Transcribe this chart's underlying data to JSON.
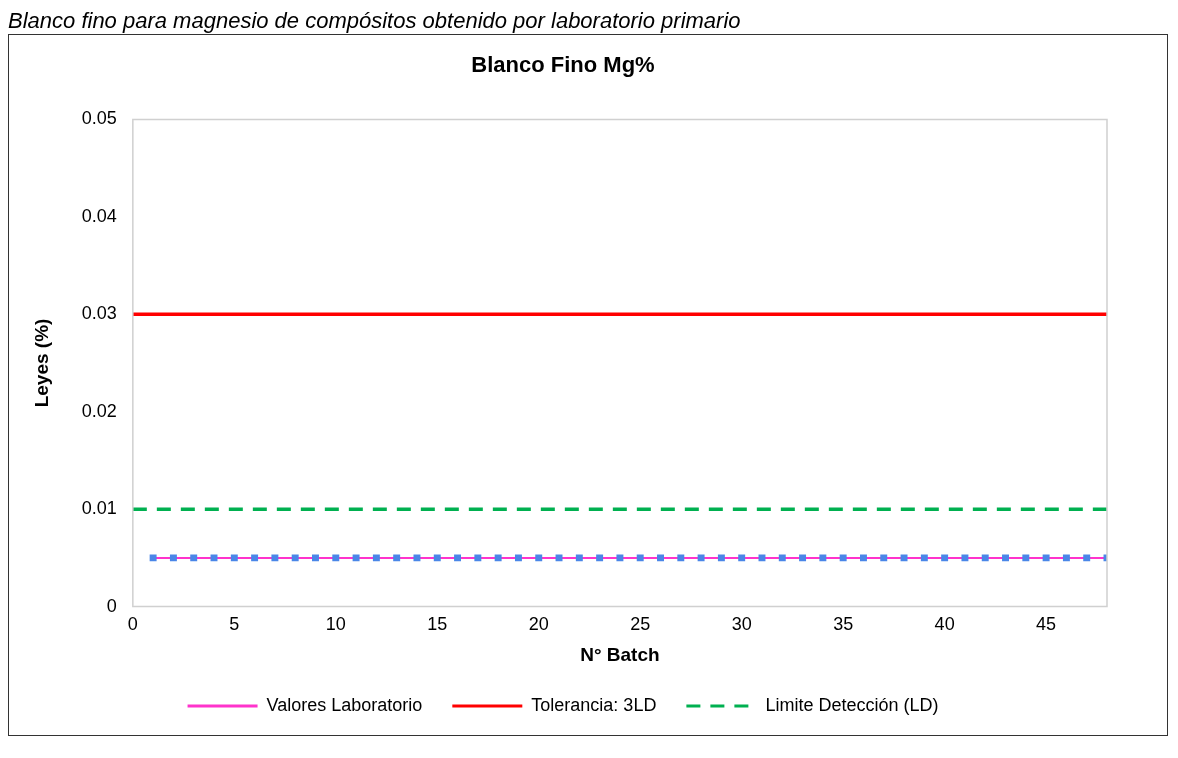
{
  "chart_data": {
    "type": "line",
    "title": "Blanco Fino Mg%",
    "xlabel": "N° Batch",
    "ylabel": "Leyes (%)",
    "annotations": [
      "Blanco fino para magnesio de compósitos obtenido por laboratorio primario"
    ],
    "xlim": [
      0,
      48
    ],
    "xticks": [
      0,
      5,
      10,
      15,
      20,
      25,
      30,
      35,
      40,
      45
    ],
    "ylim": [
      0,
      0.05
    ],
    "yticks": [
      0,
      0.01,
      0.02,
      0.03,
      0.04,
      0.05
    ],
    "grid": false,
    "legend": "bottom",
    "series": [
      {
        "name": "Valores Laboratorio",
        "color": "#ff33cc",
        "marker": "square",
        "line_style": "solid",
        "x": [
          1,
          2,
          3,
          4,
          5,
          6,
          7,
          8,
          9,
          10,
          11,
          12,
          13,
          14,
          15,
          16,
          17,
          18,
          19,
          20,
          21,
          22,
          23,
          24,
          25,
          26,
          27,
          28,
          29,
          30,
          31,
          32,
          33,
          34,
          35,
          36,
          37,
          38,
          39,
          40,
          41,
          42,
          43,
          44,
          45,
          46,
          47,
          48
        ],
        "values": [
          0.005,
          0.005,
          0.005,
          0.005,
          0.005,
          0.005,
          0.005,
          0.005,
          0.005,
          0.005,
          0.005,
          0.005,
          0.005,
          0.005,
          0.005,
          0.005,
          0.005,
          0.005,
          0.005,
          0.005,
          0.005,
          0.005,
          0.005,
          0.005,
          0.005,
          0.005,
          0.005,
          0.005,
          0.005,
          0.005,
          0.005,
          0.005,
          0.005,
          0.005,
          0.005,
          0.005,
          0.005,
          0.005,
          0.005,
          0.005,
          0.005,
          0.005,
          0.005,
          0.005,
          0.005,
          0.005,
          0.005,
          0.005
        ]
      },
      {
        "name": "Tolerancia: 3LD",
        "color": "#ff0000",
        "marker": "none",
        "line_style": "solid",
        "x": [
          0,
          48
        ],
        "values": [
          0.03,
          0.03
        ]
      },
      {
        "name": "Limite Detección (LD)",
        "color": "#00b050",
        "marker": "none",
        "line_style": "dashed",
        "x": [
          0,
          48
        ],
        "values": [
          0.01,
          0.01
        ]
      }
    ]
  }
}
